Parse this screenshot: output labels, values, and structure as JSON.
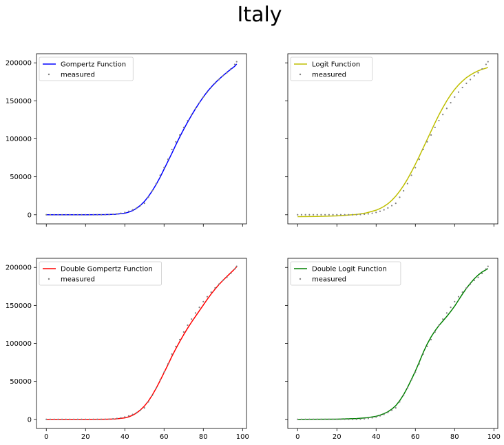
{
  "figure": {
    "suptitle": "Italy"
  },
  "chart_data": [
    {
      "type": "line",
      "panel": "top-left",
      "title": "",
      "xlabel": "",
      "ylabel": "",
      "xlim": [
        -5,
        102
      ],
      "ylim": [
        -12000,
        212000
      ],
      "xticks": [
        0,
        20,
        40,
        60,
        80,
        100
      ],
      "yticks": [
        0,
        50000,
        100000,
        150000,
        200000
      ],
      "show_x_tick_labels": false,
      "show_y_tick_labels": true,
      "grid": false,
      "legend_position": "upper-left",
      "series": [
        {
          "name": "Gompertz Function",
          "kind": "line",
          "color": "#0000ff",
          "x": [
            0,
            10,
            20,
            30,
            35,
            40,
            42,
            44,
            46,
            48,
            50,
            52,
            54,
            56,
            58,
            60,
            62,
            64,
            66,
            68,
            70,
            72,
            74,
            76,
            78,
            80,
            82,
            84,
            86,
            88,
            90,
            92,
            94,
            96,
            97
          ],
          "y": [
            0,
            0,
            0,
            200,
            600,
            2000,
            3500,
            5500,
            8500,
            12500,
            17500,
            24000,
            31500,
            40000,
            49500,
            60000,
            70500,
            81000,
            92000,
            102500,
            112500,
            122000,
            131000,
            139500,
            147500,
            155000,
            162000,
            168000,
            173500,
            178500,
            183000,
            187500,
            191500,
            195500,
            198500
          ]
        },
        {
          "name": "measured",
          "kind": "scatter",
          "color": "#808080",
          "x": [
            0,
            2,
            4,
            6,
            8,
            10,
            12,
            14,
            16,
            18,
            20,
            22,
            24,
            26,
            28,
            30,
            32,
            34,
            36,
            38,
            40,
            42,
            44,
            46,
            48,
            50,
            52,
            54,
            56,
            58,
            60,
            62,
            64,
            66,
            68,
            70,
            72,
            74,
            76,
            78,
            80,
            82,
            84,
            86,
            88,
            90,
            92,
            94,
            96,
            97
          ],
          "y": [
            0,
            0,
            0,
            0,
            0,
            0,
            0,
            0,
            0,
            0,
            0,
            0,
            0,
            0,
            0,
            100,
            300,
            700,
            1200,
            2000,
            3100,
            4600,
            6500,
            9000,
            12000,
            15100,
            23000,
            31500,
            41000,
            52000,
            62000,
            73000,
            86000,
            96000,
            105000,
            115000,
            124000,
            132000,
            140000,
            147500,
            155000,
            161500,
            167500,
            173000,
            178000,
            183000,
            187000,
            192000,
            198000,
            201500
          ]
        }
      ]
    },
    {
      "type": "line",
      "panel": "top-right",
      "title": "",
      "xlabel": "",
      "ylabel": "",
      "xlim": [
        -5,
        102
      ],
      "ylim": [
        -12000,
        212000
      ],
      "xticks": [
        0,
        20,
        40,
        60,
        80,
        100
      ],
      "yticks": [
        0,
        50000,
        100000,
        150000,
        200000
      ],
      "show_x_tick_labels": false,
      "show_y_tick_labels": false,
      "grid": false,
      "legend_position": "upper-left",
      "series": [
        {
          "name": "Logit Function",
          "kind": "line",
          "color": "#bfbf00",
          "x": [
            0,
            10,
            20,
            30,
            35,
            40,
            42,
            44,
            46,
            48,
            50,
            52,
            54,
            56,
            58,
            60,
            62,
            64,
            66,
            68,
            70,
            72,
            74,
            76,
            78,
            80,
            82,
            84,
            86,
            88,
            90,
            92,
            94,
            96,
            97
          ],
          "y": [
            -2500,
            -2200,
            -1500,
            400,
            2400,
            6000,
            8200,
            11000,
            14500,
            19000,
            24500,
            31000,
            38500,
            47000,
            56500,
            66500,
            77000,
            88000,
            99000,
            110000,
            121000,
            131500,
            141000,
            150000,
            158000,
            165000,
            171000,
            176000,
            180500,
            184000,
            187000,
            189500,
            191500,
            193000,
            194000
          ]
        },
        {
          "name": "measured",
          "kind": "scatter",
          "color": "#808080",
          "x": [
            0,
            2,
            4,
            6,
            8,
            10,
            12,
            14,
            16,
            18,
            20,
            22,
            24,
            26,
            28,
            30,
            32,
            34,
            36,
            38,
            40,
            42,
            44,
            46,
            48,
            50,
            52,
            54,
            56,
            58,
            60,
            62,
            64,
            66,
            68,
            70,
            72,
            74,
            76,
            78,
            80,
            82,
            84,
            86,
            88,
            90,
            92,
            94,
            96,
            97
          ],
          "y": [
            0,
            0,
            0,
            0,
            0,
            0,
            0,
            0,
            0,
            0,
            0,
            0,
            0,
            0,
            0,
            100,
            300,
            700,
            1200,
            2000,
            3100,
            4600,
            6500,
            9000,
            12000,
            15100,
            23000,
            31500,
            41000,
            52000,
            62000,
            73000,
            86000,
            96000,
            105000,
            115000,
            124000,
            132000,
            140000,
            147500,
            155000,
            161500,
            167500,
            173000,
            178000,
            183000,
            187000,
            192000,
            198000,
            201500
          ]
        }
      ]
    },
    {
      "type": "line",
      "panel": "bottom-left",
      "title": "",
      "xlabel": "",
      "ylabel": "",
      "xlim": [
        -5,
        102
      ],
      "ylim": [
        -12000,
        212000
      ],
      "xticks": [
        0,
        20,
        40,
        60,
        80,
        100
      ],
      "yticks": [
        0,
        50000,
        100000,
        150000,
        200000
      ],
      "show_x_tick_labels": true,
      "show_y_tick_labels": true,
      "grid": false,
      "legend_position": "upper-left",
      "series": [
        {
          "name": "Double Gompertz Function",
          "kind": "line",
          "color": "#ff0000",
          "x": [
            0,
            10,
            20,
            30,
            35,
            40,
            42,
            44,
            46,
            48,
            50,
            52,
            54,
            56,
            58,
            60,
            62,
            64,
            66,
            68,
            70,
            72,
            74,
            76,
            78,
            80,
            82,
            84,
            86,
            88,
            90,
            92,
            94,
            96,
            97
          ],
          "y": [
            0,
            0,
            0,
            150,
            500,
            1900,
            3300,
            5400,
            8400,
            12500,
            17500,
            24000,
            32000,
            41000,
            51000,
            61500,
            72000,
            83000,
            93000,
            102500,
            111500,
            120000,
            128000,
            135500,
            143000,
            150500,
            158000,
            165000,
            171500,
            177500,
            183000,
            188000,
            193000,
            198000,
            201000
          ]
        },
        {
          "name": "measured",
          "kind": "scatter",
          "color": "#808080",
          "x": [
            0,
            2,
            4,
            6,
            8,
            10,
            12,
            14,
            16,
            18,
            20,
            22,
            24,
            26,
            28,
            30,
            32,
            34,
            36,
            38,
            40,
            42,
            44,
            46,
            48,
            50,
            52,
            54,
            56,
            58,
            60,
            62,
            64,
            66,
            68,
            70,
            72,
            74,
            76,
            78,
            80,
            82,
            84,
            86,
            88,
            90,
            92,
            94,
            96,
            97
          ],
          "y": [
            0,
            0,
            0,
            0,
            0,
            0,
            0,
            0,
            0,
            0,
            0,
            0,
            0,
            0,
            0,
            100,
            300,
            700,
            1200,
            2000,
            3100,
            4600,
            6500,
            9000,
            12000,
            15100,
            23000,
            31500,
            41000,
            52000,
            62000,
            73000,
            86000,
            96000,
            105000,
            115000,
            124000,
            132000,
            140000,
            147500,
            155000,
            161500,
            167500,
            173000,
            178000,
            183000,
            187000,
            192000,
            198000,
            201500
          ]
        }
      ]
    },
    {
      "type": "line",
      "panel": "bottom-right",
      "title": "",
      "xlabel": "",
      "ylabel": "",
      "xlim": [
        -5,
        102
      ],
      "ylim": [
        -12000,
        212000
      ],
      "xticks": [
        0,
        20,
        40,
        60,
        80,
        100
      ],
      "yticks": [
        0,
        50000,
        100000,
        150000,
        200000
      ],
      "show_x_tick_labels": true,
      "show_y_tick_labels": false,
      "grid": false,
      "legend_position": "upper-left",
      "series": [
        {
          "name": "Double Logit Function",
          "kind": "line",
          "color": "#008000",
          "x": [
            0,
            10,
            20,
            30,
            35,
            40,
            42,
            44,
            46,
            48,
            50,
            52,
            54,
            56,
            58,
            60,
            62,
            64,
            66,
            68,
            70,
            72,
            74,
            76,
            78,
            80,
            82,
            84,
            86,
            88,
            90,
            92,
            94,
            96,
            97
          ],
          "y": [
            0,
            100,
            300,
            1000,
            2000,
            4000,
            5500,
            7500,
            10000,
            13500,
            18000,
            24500,
            32500,
            42000,
            52500,
            63500,
            75500,
            88000,
            99000,
            108500,
            116500,
            123500,
            129500,
            135500,
            142000,
            149000,
            157000,
            165000,
            172500,
            179000,
            185000,
            190000,
            194000,
            197000,
            198500
          ]
        },
        {
          "name": "measured",
          "kind": "scatter",
          "color": "#808080",
          "x": [
            0,
            2,
            4,
            6,
            8,
            10,
            12,
            14,
            16,
            18,
            20,
            22,
            24,
            26,
            28,
            30,
            32,
            34,
            36,
            38,
            40,
            42,
            44,
            46,
            48,
            50,
            52,
            54,
            56,
            58,
            60,
            62,
            64,
            66,
            68,
            70,
            72,
            74,
            76,
            78,
            80,
            82,
            84,
            86,
            88,
            90,
            92,
            94,
            96,
            97
          ],
          "y": [
            0,
            0,
            0,
            0,
            0,
            0,
            0,
            0,
            0,
            0,
            0,
            0,
            0,
            0,
            0,
            100,
            300,
            700,
            1200,
            2000,
            3100,
            4600,
            6500,
            9000,
            12000,
            15100,
            23000,
            31500,
            41000,
            52000,
            62000,
            73000,
            86000,
            96000,
            105000,
            115000,
            124000,
            132000,
            140000,
            147500,
            155000,
            161500,
            167500,
            173000,
            178000,
            183000,
            187000,
            192000,
            198000,
            201500
          ]
        }
      ]
    }
  ]
}
